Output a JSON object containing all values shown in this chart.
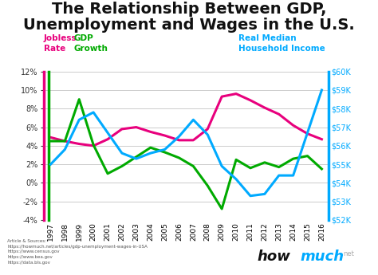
{
  "title_line1": "The Relationship Between GDP,",
  "title_line2": "Unemployment and Wages in the U.S.",
  "title_fontsize": 14,
  "background_color": "#ffffff",
  "years": [
    1997,
    1998,
    1999,
    2000,
    2001,
    2002,
    2003,
    2004,
    2005,
    2006,
    2007,
    2008,
    2009,
    2010,
    2011,
    2012,
    2013,
    2014,
    2015,
    2016
  ],
  "jobless_rate": [
    4.9,
    4.5,
    4.2,
    4.0,
    4.7,
    5.8,
    6.0,
    5.5,
    5.1,
    4.6,
    4.6,
    5.8,
    9.3,
    9.6,
    8.9,
    8.1,
    7.4,
    6.2,
    5.3,
    4.7
  ],
  "gdp_growth": [
    4.5,
    4.5,
    9.0,
    4.1,
    1.0,
    1.8,
    2.8,
    3.8,
    3.3,
    2.7,
    1.8,
    -0.3,
    -2.8,
    2.5,
    1.6,
    2.2,
    1.7,
    2.6,
    2.9,
    1.5
  ],
  "real_income": [
    55000,
    55800,
    57400,
    57800,
    56700,
    55600,
    55300,
    55600,
    55800,
    56500,
    57400,
    56600,
    54900,
    54200,
    53300,
    53400,
    54400,
    54400,
    56700,
    59000
  ],
  "jobless_color": "#e8007d",
  "gdp_color": "#00aa00",
  "income_color": "#00aaff",
  "left_ylim": [
    -4,
    12
  ],
  "right_ylim": [
    52000,
    60000
  ],
  "left_yticks": [
    -4,
    -2,
    0,
    2,
    4,
    6,
    8,
    10,
    12
  ],
  "right_yticks": [
    52000,
    53000,
    54000,
    55000,
    56000,
    57000,
    58000,
    59000,
    60000
  ],
  "label_jobless": "Jobless",
  "label_rate": "Rate",
  "label_gdp": "GDP",
  "label_growth": "Growth",
  "label_income1": "Real Median",
  "label_income2": "Household Income",
  "sources_text": "Article & Sources:\nhttps://howmuch.net/articles/gdp-unemployment-wages-in-USA\nhttps://www.census.gov\nhttps://www.bea.gov\nhttps://data.bls.gov",
  "watermark": "how",
  "watermark_much": "much",
  "watermark_net": "net",
  "line_width": 2.2
}
